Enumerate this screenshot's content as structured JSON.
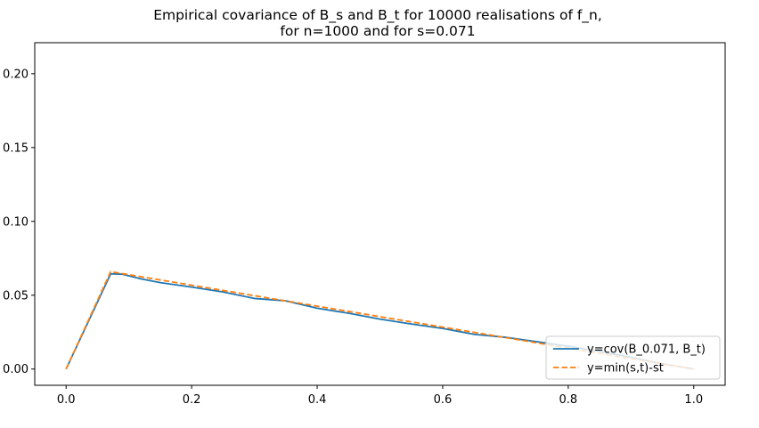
{
  "chart_data": {
    "type": "line",
    "title": "Empirical covariance of B_s and B_t for 10000 realisations of f_n,",
    "subtitle": "for n=1000 and for s=0.071",
    "xlabel": "",
    "ylabel": "",
    "xlim": [
      -0.05,
      1.05
    ],
    "ylim": [
      -0.011,
      0.221
    ],
    "grid": false,
    "legend_position": "lower right",
    "x_ticks": [
      0.0,
      0.2,
      0.4,
      0.6,
      0.8,
      1.0
    ],
    "x_tick_labels": [
      "0.0",
      "0.2",
      "0.4",
      "0.6",
      "0.8",
      "1.0"
    ],
    "y_ticks": [
      0.0,
      0.05,
      0.1,
      0.15,
      0.2
    ],
    "y_tick_labels": [
      "0.00",
      "0.05",
      "0.10",
      "0.15",
      "0.20"
    ],
    "series": [
      {
        "name": "y=cov(B_0.071, B_t)",
        "color": "#1f77b4",
        "style": "solid",
        "x": [
          0.0,
          0.071,
          0.09,
          0.12,
          0.15,
          0.2,
          0.25,
          0.3,
          0.35,
          0.4,
          0.45,
          0.5,
          0.55,
          0.6,
          0.65,
          0.7,
          0.75,
          0.8,
          0.85,
          0.9,
          0.95,
          1.0
        ],
        "y": [
          0.0,
          0.0645,
          0.0642,
          0.061,
          0.0585,
          0.0555,
          0.0522,
          0.0478,
          0.0462,
          0.0412,
          0.0378,
          0.0338,
          0.0305,
          0.0275,
          0.0235,
          0.0215,
          0.0185,
          0.0155,
          0.012,
          0.008,
          0.0035,
          0.0
        ]
      },
      {
        "name": "y=min(s,t)-st",
        "color": "#ff7f0e",
        "style": "dashed",
        "x": [
          0.0,
          0.071,
          1.0
        ],
        "y": [
          0.0,
          0.06596,
          0.0
        ]
      }
    ]
  }
}
